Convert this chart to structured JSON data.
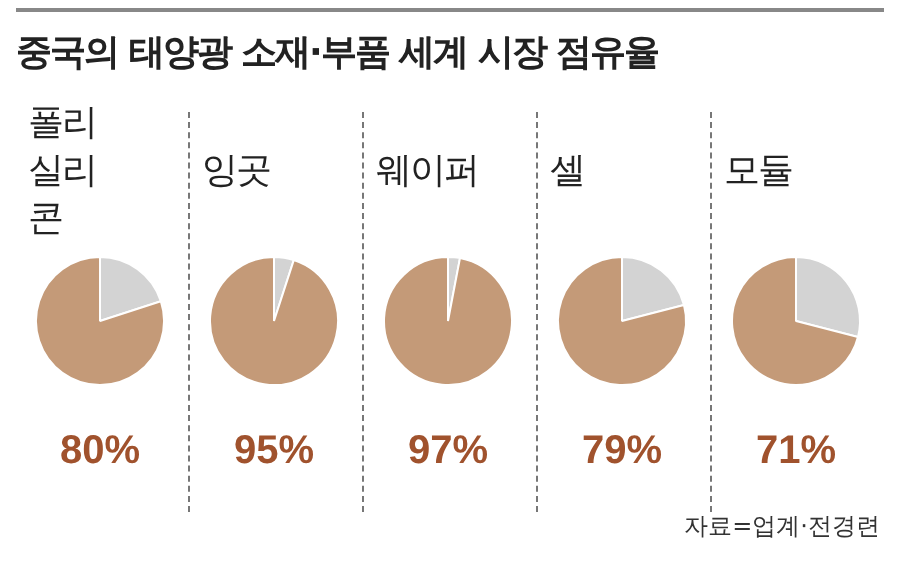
{
  "chart_data": [
    {
      "type": "other",
      "title": "중국의 태양광 소재·부품 세계 시장 점유율",
      "annotations": [
        "자료=업계·전경련"
      ]
    },
    {
      "type": "pie",
      "title": "폴리실리콘",
      "categories": [
        null,
        null
      ],
      "values": [
        20,
        80
      ],
      "colors": [
        "#d3d3d3",
        "#c49a78"
      ],
      "value_labels": [
        null,
        "80%"
      ]
    },
    {
      "type": "pie",
      "title": "잉곳",
      "categories": [
        null,
        null
      ],
      "values": [
        5,
        95
      ],
      "colors": [
        "#d3d3d3",
        "#c49a78"
      ],
      "value_labels": [
        null,
        "95%"
      ]
    },
    {
      "type": "pie",
      "title": "웨이퍼",
      "categories": [
        null,
        null
      ],
      "values": [
        3,
        97
      ],
      "colors": [
        "#d3d3d3",
        "#c49a78"
      ],
      "value_labels": [
        null,
        "97%"
      ]
    },
    {
      "type": "pie",
      "title": "셀",
      "categories": [
        null,
        null
      ],
      "values": [
        21,
        79
      ],
      "colors": [
        "#d3d3d3",
        "#c49a78"
      ],
      "value_labels": [
        null,
        "79%"
      ]
    },
    {
      "type": "pie",
      "title": "모듈",
      "categories": [
        null,
        null
      ],
      "values": [
        29,
        71
      ],
      "colors": [
        "#d3d3d3",
        "#c49a78"
      ],
      "value_labels": [
        null,
        "71%"
      ]
    }
  ]
}
